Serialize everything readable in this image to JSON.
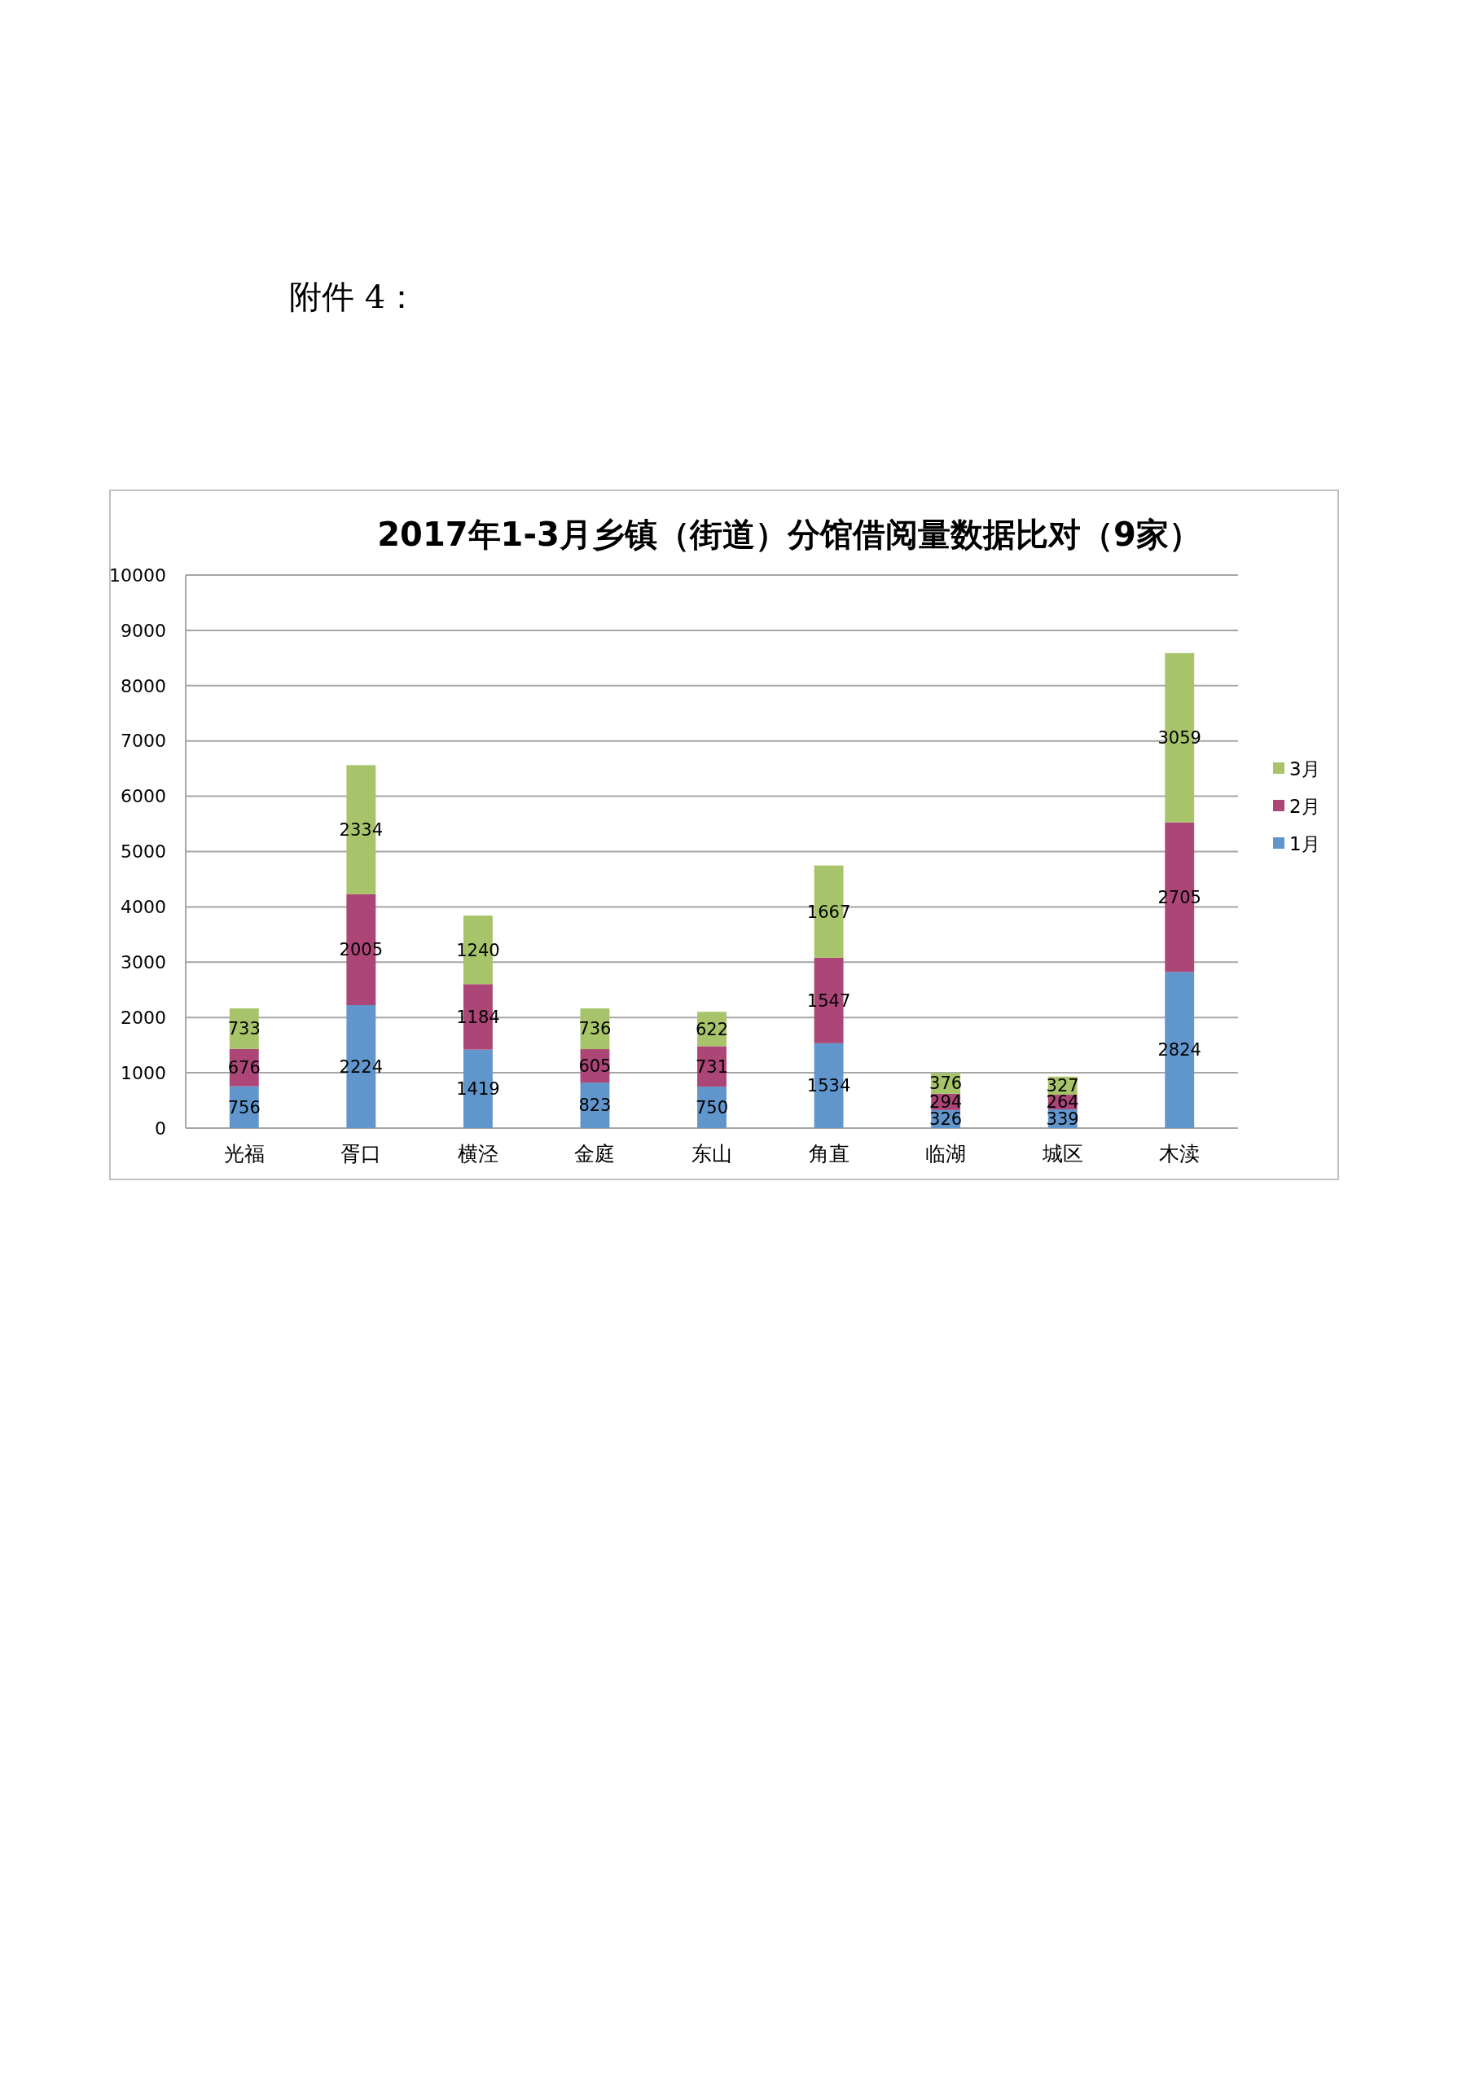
{
  "chart_data": {
    "type": "bar",
    "title": "2017年1-3月乡镇（街道）分馆借阅量数据比对（9家）",
    "annotations": [
      "附件 4："
    ],
    "categories": [
      "光福",
      "胥口",
      "横泾",
      "金庭",
      "东山",
      "角直",
      "临湖",
      "城区",
      "木渎"
    ],
    "series": [
      {
        "name": "1月",
        "color": "#6096cc",
        "values": [
          756,
          2224,
          1419,
          823,
          750,
          1534,
          326,
          339,
          2824
        ]
      },
      {
        "name": "2月",
        "color": "#ab4677",
        "values": [
          676,
          2005,
          1184,
          605,
          731,
          1547,
          294,
          264,
          2705
        ]
      },
      {
        "name": "3月",
        "color": "#a7c46a",
        "values": [
          733,
          2334,
          1240,
          736,
          622,
          1667,
          376,
          327,
          3059
        ]
      }
    ],
    "stacked": true,
    "ylim": [
      0,
      10000
    ],
    "yticks": [
      0,
      1000,
      2000,
      3000,
      4000,
      5000,
      6000,
      7000,
      8000,
      9000,
      10000
    ],
    "grid": "y",
    "legend": "right",
    "data_labels": true
  }
}
